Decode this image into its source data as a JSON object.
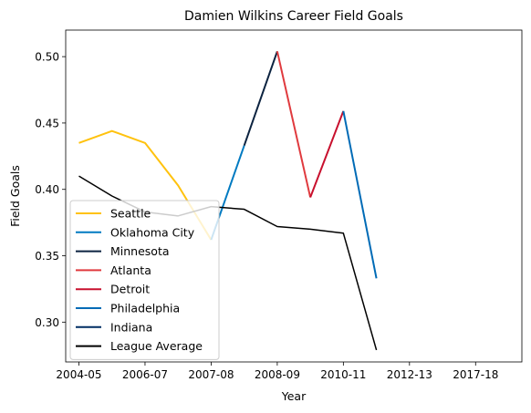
{
  "chart_data": {
    "type": "line",
    "title": "Damien Wilkins Career Field Goals",
    "xlabel": "Year",
    "ylabel": "Field Goals",
    "xlim": [
      -0.4,
      13.4
    ],
    "ylim": [
      0.27,
      0.52
    ],
    "x_tick_labels": [
      "2004-05",
      "2006-07",
      "2007-08",
      "2008-09",
      "2010-11",
      "2012-13",
      "2017-18"
    ],
    "y_ticks": [
      0.3,
      0.35,
      0.4,
      0.45,
      0.5
    ],
    "y_tick_labels": [
      "0.30",
      "0.35",
      "0.40",
      "0.45",
      "0.50"
    ],
    "legend_position": "lower-left",
    "series": [
      {
        "name": "Seattle",
        "color": "#FFC20E",
        "points": [
          [
            0,
            0.435
          ],
          [
            1,
            0.444
          ],
          [
            2,
            0.435
          ],
          [
            3,
            0.403
          ],
          [
            4,
            0.362
          ]
        ]
      },
      {
        "name": "Oklahoma City",
        "color": "#007AC1",
        "points": [
          [
            4,
            0.362
          ],
          [
            5,
            0.433
          ]
        ]
      },
      {
        "name": "Minnesota",
        "color": "#0C2340",
        "points": [
          [
            5,
            0.433
          ],
          [
            6,
            0.504
          ]
        ]
      },
      {
        "name": "Atlanta",
        "color": "#E03A3E",
        "points": [
          [
            6,
            0.504
          ],
          [
            7,
            0.394
          ]
        ]
      },
      {
        "name": "Detroit",
        "color": "#C8102E",
        "points": [
          [
            7,
            0.394
          ],
          [
            8,
            0.459
          ]
        ]
      },
      {
        "name": "Philadelphia",
        "color": "#006BB6",
        "points": [
          [
            8,
            0.459
          ],
          [
            9,
            0.333
          ]
        ]
      },
      {
        "name": "Indiana",
        "color": "#002D62",
        "points": [
          [
            9,
            0.333
          ]
        ]
      },
      {
        "name": "League Average",
        "color": "#000000",
        "points": [
          [
            0,
            0.41
          ],
          [
            1,
            0.395
          ],
          [
            2,
            0.383
          ],
          [
            3,
            0.38
          ],
          [
            4,
            0.387
          ],
          [
            5,
            0.385
          ],
          [
            6,
            0.372
          ],
          [
            7,
            0.37
          ],
          [
            8,
            0.367
          ],
          [
            9,
            0.279
          ]
        ]
      }
    ]
  }
}
